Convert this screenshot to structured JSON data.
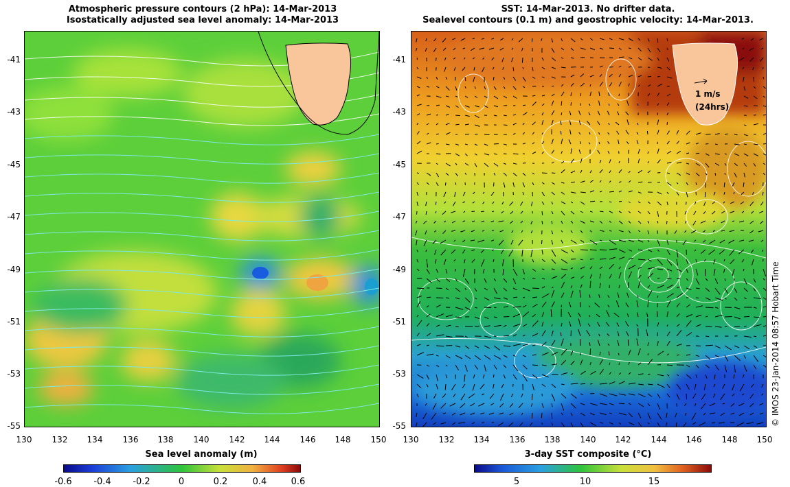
{
  "left_panel": {
    "title_line1": "Atmospheric pressure contours (2 hPa): 14-Mar-2013",
    "title_line2": "Isostatically adjusted sea level anomaly: 14-Mar-2013",
    "colorbar_label": "Sea level anomaly (m)",
    "colorbar_ticks": [
      "-0.6",
      "-0.4",
      "-0.2",
      "0",
      "0.2",
      "0.4",
      "0.6"
    ]
  },
  "right_panel": {
    "title_line1": "SST: 14-Mar-2013. No drifter data.",
    "title_line2": "Sealevel contours (0.1 m) and geostrophic velocity: 14-Mar-2013.",
    "colorbar_label": "3-day SST composite (°C)",
    "colorbar_ticks": [
      "5",
      "10",
      "15"
    ],
    "velocity_key_speed": "1 m/s",
    "velocity_key_time": "(24hrs)"
  },
  "axes": {
    "lat_labels": [
      "-41",
      "-43",
      "-45",
      "-47",
      "-49",
      "-51",
      "-53",
      "-55"
    ],
    "lon_labels": [
      "130",
      "132",
      "134",
      "136",
      "138",
      "140",
      "142",
      "144",
      "146",
      "148",
      "150"
    ]
  },
  "credit": "© IMOS 23-Jan-2014 08:57 Hobart Time",
  "colors": {
    "land": "#f9c59a",
    "sla_low": "#1a3dd6",
    "sla_mid": "#2ec43a",
    "sla_high": "#b51616",
    "sst_cold": "#0a1a8a",
    "sst_warm": "#8a0a0a"
  }
}
